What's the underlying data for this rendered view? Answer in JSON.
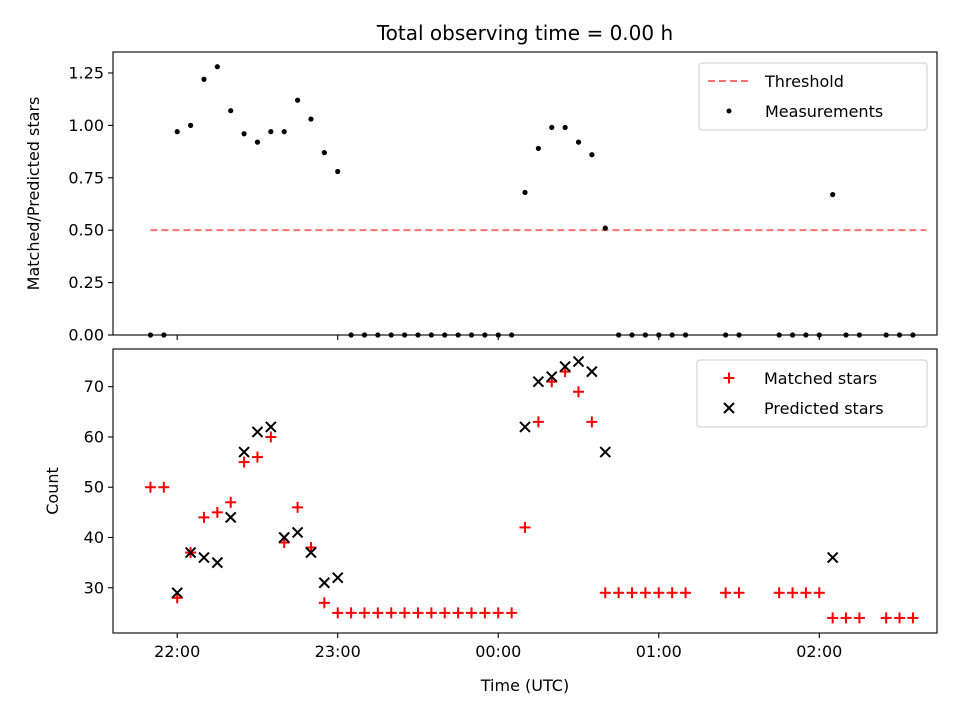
{
  "chart_data": [
    {
      "type": "scatter",
      "title": "Total observing time = 0.00 h",
      "ylabel": "Matched/Predicted stars",
      "xlabel": "",
      "xlim": [
        "21:36",
        "02:44"
      ],
      "ylim": [
        0,
        1.35
      ],
      "grid": false,
      "legend_position": "top-right",
      "yticks": [
        "0.00",
        "0.25",
        "0.50",
        "0.75",
        "1.00",
        "1.25"
      ],
      "xticks": [
        "22:00",
        "23:00",
        "00:00",
        "01:00",
        "02:00"
      ],
      "show_xtick_labels": false,
      "threshold": {
        "name": "Threshold",
        "value": 0.5,
        "x_start": "21:50",
        "x_end": "02:40",
        "color": "#ff7070"
      },
      "series": [
        {
          "name": "Measurements",
          "color": "#000000",
          "marker": "dot",
          "points": [
            [
              "21:50",
              0.0
            ],
            [
              "21:55",
              0.0
            ],
            [
              "22:00",
              0.97
            ],
            [
              "22:05",
              1.0
            ],
            [
              "22:10",
              1.22
            ],
            [
              "22:15",
              1.28
            ],
            [
              "22:20",
              1.07
            ],
            [
              "22:25",
              0.96
            ],
            [
              "22:30",
              0.92
            ],
            [
              "22:35",
              0.97
            ],
            [
              "22:40",
              0.97
            ],
            [
              "22:45",
              1.12
            ],
            [
              "22:50",
              1.03
            ],
            [
              "22:55",
              0.87
            ],
            [
              "23:00",
              0.78
            ],
            [
              "23:05",
              0.0
            ],
            [
              "23:10",
              0.0
            ],
            [
              "23:15",
              0.0
            ],
            [
              "23:20",
              0.0
            ],
            [
              "23:25",
              0.0
            ],
            [
              "23:30",
              0.0
            ],
            [
              "23:35",
              0.0
            ],
            [
              "23:40",
              0.0
            ],
            [
              "23:45",
              0.0
            ],
            [
              "23:50",
              0.0
            ],
            [
              "23:55",
              0.0
            ],
            [
              "00:00",
              0.0
            ],
            [
              "00:05",
              0.0
            ],
            [
              "00:10",
              0.68
            ],
            [
              "00:15",
              0.89
            ],
            [
              "00:20",
              0.99
            ],
            [
              "00:25",
              0.99
            ],
            [
              "00:30",
              0.92
            ],
            [
              "00:35",
              0.86
            ],
            [
              "00:40",
              0.51
            ],
            [
              "00:45",
              0.0
            ],
            [
              "00:50",
              0.0
            ],
            [
              "00:55",
              0.0
            ],
            [
              "01:00",
              0.0
            ],
            [
              "01:05",
              0.0
            ],
            [
              "01:10",
              0.0
            ],
            [
              "01:25",
              0.0
            ],
            [
              "01:30",
              0.0
            ],
            [
              "01:45",
              0.0
            ],
            [
              "01:50",
              0.0
            ],
            [
              "01:55",
              0.0
            ],
            [
              "02:00",
              0.0
            ],
            [
              "02:05",
              0.67
            ],
            [
              "02:10",
              0.0
            ],
            [
              "02:15",
              0.0
            ],
            [
              "02:25",
              0.0
            ],
            [
              "02:30",
              0.0
            ],
            [
              "02:35",
              0.0
            ]
          ]
        }
      ]
    },
    {
      "type": "scatter",
      "title": "",
      "ylabel": "Count",
      "xlabel": "Time (UTC)",
      "xlim": [
        "21:36",
        "02:44"
      ],
      "ylim": [
        21,
        77.5
      ],
      "grid": false,
      "legend_position": "top-right",
      "yticks": [
        "30",
        "40",
        "50",
        "60",
        "70"
      ],
      "xticks": [
        "22:00",
        "23:00",
        "00:00",
        "01:00",
        "02:00"
      ],
      "show_xtick_labels": true,
      "series": [
        {
          "name": "Matched stars",
          "color": "#ff0000",
          "marker": "plus",
          "points": [
            [
              "21:50",
              50
            ],
            [
              "21:55",
              50
            ],
            [
              "22:00",
              28
            ],
            [
              "22:05",
              37
            ],
            [
              "22:10",
              44
            ],
            [
              "22:15",
              45
            ],
            [
              "22:20",
              47
            ],
            [
              "22:25",
              55
            ],
            [
              "22:30",
              56
            ],
            [
              "22:35",
              60
            ],
            [
              "22:40",
              39
            ],
            [
              "22:45",
              46
            ],
            [
              "22:50",
              38
            ],
            [
              "22:55",
              27
            ],
            [
              "23:00",
              25
            ],
            [
              "23:05",
              25
            ],
            [
              "23:10",
              25
            ],
            [
              "23:15",
              25
            ],
            [
              "23:20",
              25
            ],
            [
              "23:25",
              25
            ],
            [
              "23:30",
              25
            ],
            [
              "23:35",
              25
            ],
            [
              "23:40",
              25
            ],
            [
              "23:45",
              25
            ],
            [
              "23:50",
              25
            ],
            [
              "23:55",
              25
            ],
            [
              "00:00",
              25
            ],
            [
              "00:05",
              25
            ],
            [
              "00:10",
              42
            ],
            [
              "00:15",
              63
            ],
            [
              "00:20",
              71
            ],
            [
              "00:25",
              73
            ],
            [
              "00:30",
              69
            ],
            [
              "00:35",
              63
            ],
            [
              "00:40",
              29
            ],
            [
              "00:45",
              29
            ],
            [
              "00:50",
              29
            ],
            [
              "00:55",
              29
            ],
            [
              "01:00",
              29
            ],
            [
              "01:05",
              29
            ],
            [
              "01:10",
              29
            ],
            [
              "01:25",
              29
            ],
            [
              "01:30",
              29
            ],
            [
              "01:45",
              29
            ],
            [
              "01:50",
              29
            ],
            [
              "01:55",
              29
            ],
            [
              "02:00",
              29
            ],
            [
              "02:05",
              24
            ],
            [
              "02:10",
              24
            ],
            [
              "02:15",
              24
            ],
            [
              "02:25",
              24
            ],
            [
              "02:30",
              24
            ],
            [
              "02:35",
              24
            ]
          ]
        },
        {
          "name": "Predicted stars",
          "color": "#000000",
          "marker": "x",
          "points": [
            [
              "22:00",
              29
            ],
            [
              "22:05",
              37
            ],
            [
              "22:10",
              36
            ],
            [
              "22:15",
              35
            ],
            [
              "22:20",
              44
            ],
            [
              "22:25",
              57
            ],
            [
              "22:30",
              61
            ],
            [
              "22:35",
              62
            ],
            [
              "22:40",
              40
            ],
            [
              "22:45",
              41
            ],
            [
              "22:50",
              37
            ],
            [
              "22:55",
              31
            ],
            [
              "23:00",
              32
            ],
            [
              "00:10",
              62
            ],
            [
              "00:15",
              71
            ],
            [
              "00:20",
              72
            ],
            [
              "00:25",
              74
            ],
            [
              "00:30",
              75
            ],
            [
              "00:35",
              73
            ],
            [
              "00:40",
              57
            ],
            [
              "02:05",
              36
            ]
          ]
        }
      ]
    }
  ]
}
